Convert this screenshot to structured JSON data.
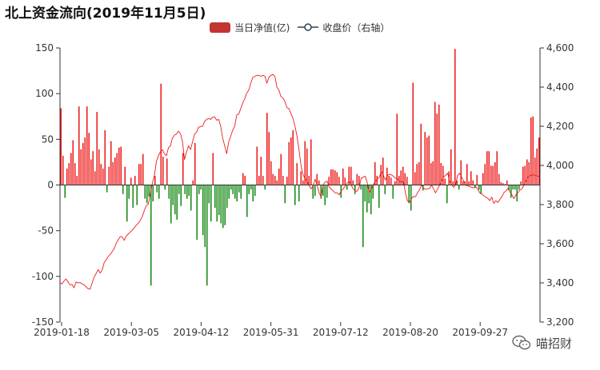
{
  "title": "北上资金流向(2019年11月5日)",
  "legend": {
    "bar_label": "当日净值(亿)",
    "line_label": "收盘价（右轴）"
  },
  "watermark": "喵招财",
  "colors": {
    "positive_bar": "#ee1c1c",
    "negative_bar": "#178a17",
    "line": "#ee1c1c",
    "legend_bar": "#c23531",
    "legend_line": "#2f4554",
    "axis": "#333333"
  },
  "chart_data": {
    "type": "bar",
    "title": "北上资金流向(2019年11月5日)",
    "x_tick_labels": [
      "2019-01-18",
      "2019-03-05",
      "2019-04-12",
      "2019-05-31",
      "2019-07-12",
      "2019-08-20",
      "2019-09-27"
    ],
    "left_axis": {
      "ticks": [
        "150",
        "100",
        "50",
        "0",
        "-50",
        "-100",
        "-150"
      ],
      "ylim": [
        -150,
        150
      ]
    },
    "right_axis": {
      "ticks": [
        "4,600",
        "4,400",
        "4,200",
        "4,000",
        "3,800",
        "3,600",
        "3,400",
        "3,200"
      ],
      "ylim": [
        3200,
        4600
      ]
    },
    "legend_position": "top-center",
    "grid": false,
    "series": [
      {
        "name": "当日净值(亿)",
        "type": "bar",
        "values": [
          84,
          32,
          -14,
          18,
          24,
          35,
          49,
          24,
          10,
          86,
          39,
          46,
          52,
          86,
          57,
          28,
          37,
          15,
          80,
          39,
          23,
          18,
          60,
          -8,
          20,
          48,
          25,
          30,
          35,
          41,
          42,
          -10,
          20,
          -40,
          -15,
          8,
          -25,
          10,
          -22,
          23,
          23,
          34,
          -15,
          -20,
          -13,
          -110,
          -18,
          10,
          -8,
          -15,
          111,
          31,
          -5,
          29,
          -15,
          -42,
          -22,
          -32,
          -38,
          -10,
          -23,
          35,
          -10,
          -15,
          -12,
          -28,
          5,
          46,
          -60,
          -10,
          -5,
          -55,
          -68,
          -110,
          -20,
          -40,
          35,
          -25,
          -40,
          -33,
          -42,
          -47,
          -44,
          -25,
          -15,
          -5,
          -10,
          -15,
          -18,
          -8,
          -15,
          13,
          10,
          -35,
          -10,
          -5,
          -18,
          -12,
          42,
          10,
          31,
          10,
          -5,
          79,
          58,
          26,
          12,
          10,
          5,
          18,
          34,
          10,
          -20,
          9,
          47,
          52,
          60,
          -22,
          24,
          -18,
          15,
          5,
          48,
          40,
          10,
          50,
          -15,
          -12,
          12,
          5,
          -15,
          -12,
          -22,
          -14,
          9,
          17,
          17,
          16,
          14,
          9,
          -14,
          18,
          8,
          -5,
          20,
          20,
          5,
          -10,
          12,
          10,
          -5,
          -68,
          -18,
          -30,
          -20,
          -32,
          -15,
          25,
          10,
          -25,
          22,
          30,
          -10,
          19,
          10,
          8,
          -15,
          4,
          78,
          10,
          16,
          20,
          13,
          9,
          -20,
          -28,
          112,
          14,
          23,
          25,
          67,
          -6,
          58,
          52,
          54,
          24,
          26,
          91,
          78,
          88,
          24,
          21,
          7,
          -20,
          15,
          39,
          4,
          149,
          5,
          -5,
          27,
          4,
          4,
          23,
          4,
          15,
          5,
          -3,
          11,
          -5,
          -10,
          13,
          23,
          37,
          37,
          21,
          21,
          25,
          37,
          12,
          3,
          2,
          1,
          5,
          -6,
          -14,
          -5,
          -5,
          -18,
          -5,
          4,
          20,
          21,
          28,
          25,
          74,
          75,
          30,
          40,
          52
        ],
        "color_positive": "#ee1c1c",
        "color_negative": "#178a17"
      },
      {
        "name": "收盘价（右轴）",
        "type": "line",
        "values": [
          3400,
          3395,
          3410,
          3420,
          3405,
          3390,
          3392,
          3375,
          3405,
          3400,
          3402,
          3395,
          3390,
          3380,
          3370,
          3368,
          3400,
          3430,
          3448,
          3468,
          3450,
          3466,
          3504,
          3518,
          3535,
          3545,
          3560,
          3575,
          3603,
          3620,
          3637,
          3635,
          3617,
          3640,
          3650,
          3660,
          3670,
          3682,
          3695,
          3705,
          3720,
          3740,
          3770,
          3795,
          3802,
          3860,
          3910,
          3950,
          4020,
          4050,
          4070,
          4080,
          4060,
          4050,
          4090,
          4100,
          4140,
          4155,
          4160,
          4175,
          4162,
          4122,
          4030,
          4068,
          4100,
          4081,
          4121,
          4160,
          4170,
          4195,
          4198,
          4200,
          4225,
          4235,
          4240,
          4235,
          4246,
          4248,
          4231,
          4235,
          4200,
          4140,
          4100,
          4060,
          4120,
          4150,
          4180,
          4200,
          4258,
          4262,
          4290,
          4320,
          4340,
          4370,
          4385,
          4420,
          4450,
          4455,
          4460,
          4460,
          4455,
          4460,
          4456,
          4420,
          4450,
          4460,
          4465,
          4455,
          4400,
          4384,
          4352,
          4345,
          4325,
          4295,
          4290,
          4264,
          4240,
          4200,
          4150,
          4080,
          4000,
          3952,
          3934,
          3920,
          3898,
          3880,
          3895,
          3930,
          3900,
          3860,
          3840,
          3900,
          3915,
          3920,
          3890,
          3880,
          3870,
          3860,
          3860,
          3850,
          3870,
          3880,
          3895,
          3910,
          3920,
          3900,
          3880,
          3870,
          3868,
          3890,
          3935,
          3940,
          3945,
          3910,
          3860,
          3880,
          3901,
          3920,
          3930,
          3940,
          3970,
          3950,
          3925,
          3948,
          3955,
          3952,
          3945,
          3935,
          3932,
          3920,
          3915,
          3918,
          3860,
          3820,
          3811,
          3830,
          3842,
          3840,
          3860,
          3875,
          3900,
          3884,
          3878,
          3881,
          3882,
          3900,
          3880,
          3860,
          3880,
          3900,
          3920,
          3941,
          3950,
          3960,
          3920,
          3900,
          3888,
          3902,
          3950,
          3960,
          3940,
          3920,
          3900,
          3895,
          3892,
          3888,
          3885,
          3890,
          3880,
          3860,
          3855,
          3845,
          3838,
          3832,
          3820,
          3838,
          3806,
          3820,
          3811,
          3826,
          3840,
          3860,
          3870,
          3883,
          3865,
          3850,
          3830,
          3850,
          3860,
          3875,
          3880,
          3900,
          3920,
          3940,
          3948,
          3950,
          3952,
          3948,
          3944,
          3950
        ],
        "color": "#ee1c1c"
      }
    ]
  }
}
